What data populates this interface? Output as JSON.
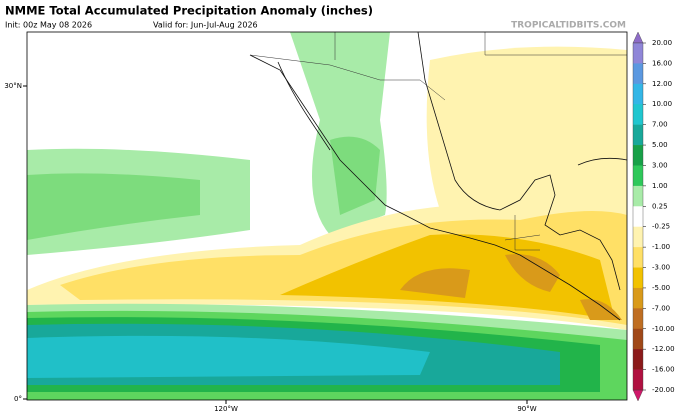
{
  "header": {
    "title": "NMME Total Accumulated Precipitation Anomaly (inches)",
    "init": "Init: 00z May 08 2026",
    "valid": "Valid for: Jun-Jul-Aug 2026",
    "watermark": "TROPICALTIDBITS.COM"
  },
  "axes": {
    "lat_labels": [
      "30°N",
      "0°"
    ],
    "lon_labels": [
      "120°W",
      "90°W"
    ]
  },
  "colorbar": {
    "labels": [
      "20.00",
      "16.00",
      "12.00",
      "10.00",
      "7.00",
      "5.00",
      "3.00",
      "1.00",
      "0.25",
      "-0.25",
      "-1.00",
      "-3.00",
      "-5.00",
      "-7.00",
      "-10.00",
      "-12.00",
      "-16.00",
      "-20.00"
    ],
    "top_color": "#8e6cc8",
    "bottom_color": "#d0186a",
    "colors": [
      "#8f86d8",
      "#5b98e0",
      "#33b6e6",
      "#20c6cf",
      "#18a89a",
      "#17a048",
      "#2ec85a",
      "#a8eba8",
      "#ffffff",
      "#fff3b0",
      "#ffe066",
      "#f2c200",
      "#d99a1a",
      "#bf6e22",
      "#a04818",
      "#8b1a1a",
      "#b01040"
    ]
  }
}
